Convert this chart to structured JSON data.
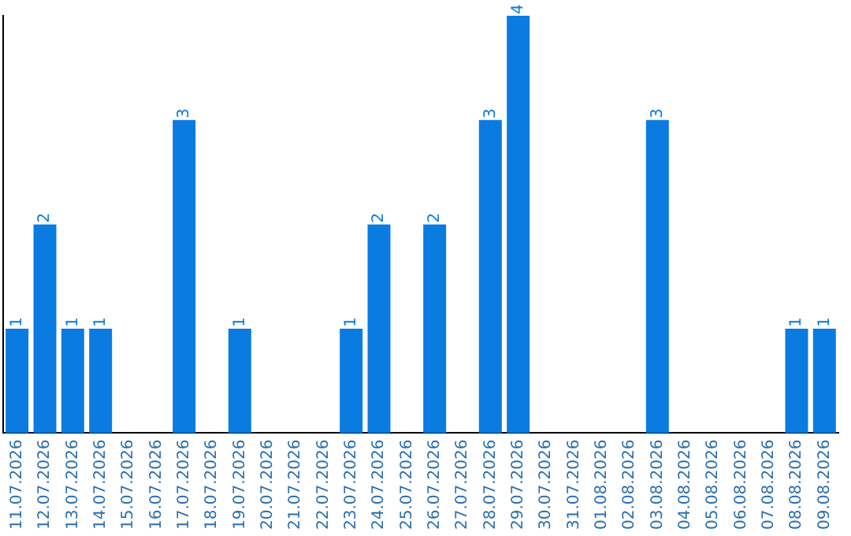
{
  "chart_data": {
    "type": "bar",
    "categories": [
      "11.07.2026",
      "12.07.2026",
      "13.07.2026",
      "14.07.2026",
      "15.07.2026",
      "16.07.2026",
      "17.07.2026",
      "18.07.2026",
      "19.07.2026",
      "20.07.2026",
      "21.07.2026",
      "22.07.2026",
      "23.07.2026",
      "24.07.2026",
      "25.07.2026",
      "26.07.2026",
      "27.07.2026",
      "28.07.2026",
      "29.07.2026",
      "30.07.2026",
      "31.07.2026",
      "01.08.2026",
      "02.08.2026",
      "03.08.2026",
      "04.08.2026",
      "05.08.2026",
      "06.08.2026",
      "07.08.2026",
      "08.08.2026",
      "09.08.2026"
    ],
    "values": [
      1,
      2,
      1,
      1,
      0,
      0,
      3,
      0,
      1,
      0,
      0,
      0,
      1,
      2,
      0,
      2,
      0,
      3,
      4,
      0,
      0,
      0,
      0,
      3,
      0,
      0,
      0,
      0,
      1,
      1
    ],
    "value_labels": [
      "1",
      "2",
      "1",
      "1",
      null,
      null,
      "3",
      null,
      "1",
      null,
      null,
      null,
      "1",
      "2",
      null,
      "2",
      null,
      "3",
      "4",
      null,
      null,
      null,
      null,
      "3",
      null,
      null,
      null,
      null,
      "1",
      "1"
    ],
    "color": "#0a7be0",
    "ylim": [
      0,
      4
    ],
    "tick_labels": "x",
    "grid": false,
    "legend": false
  }
}
